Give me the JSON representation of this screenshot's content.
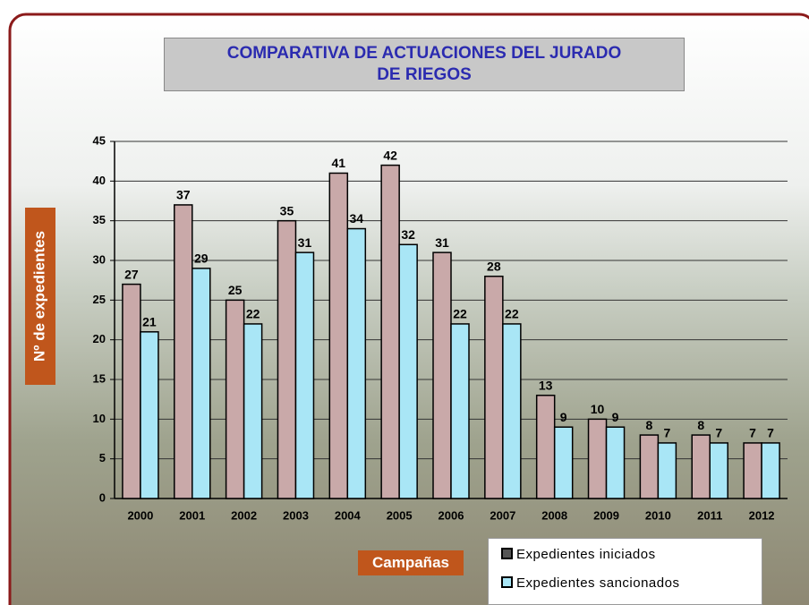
{
  "chart_data": {
    "type": "bar",
    "title": "COMPARATIVA DE ACTUACIONES DEL JURADO DE RIEGOS",
    "x_label": "Campañas",
    "y_label": "Nº de expedientes",
    "categories": [
      "2000",
      "2001",
      "2002",
      "2003",
      "2004",
      "2005",
      "2006",
      "2007",
      "2008",
      "2009",
      "2010",
      "2011",
      "2012"
    ],
    "series": [
      {
        "name": "Expedientes iniciados",
        "color": "#c9a9a9",
        "values": [
          27,
          37,
          25,
          35,
          41,
          42,
          31,
          28,
          13,
          10,
          8,
          8,
          7
        ]
      },
      {
        "name": "Expedientes sancionados",
        "color": "#a9e6f6",
        "values": [
          21,
          29,
          22,
          31,
          34,
          32,
          22,
          22,
          9,
          9,
          7,
          7,
          7
        ]
      }
    ],
    "ylim": [
      0,
      45
    ],
    "yticks": [
      0,
      5,
      10,
      15,
      20,
      25,
      30,
      35,
      40,
      45
    ],
    "grid": true
  }
}
